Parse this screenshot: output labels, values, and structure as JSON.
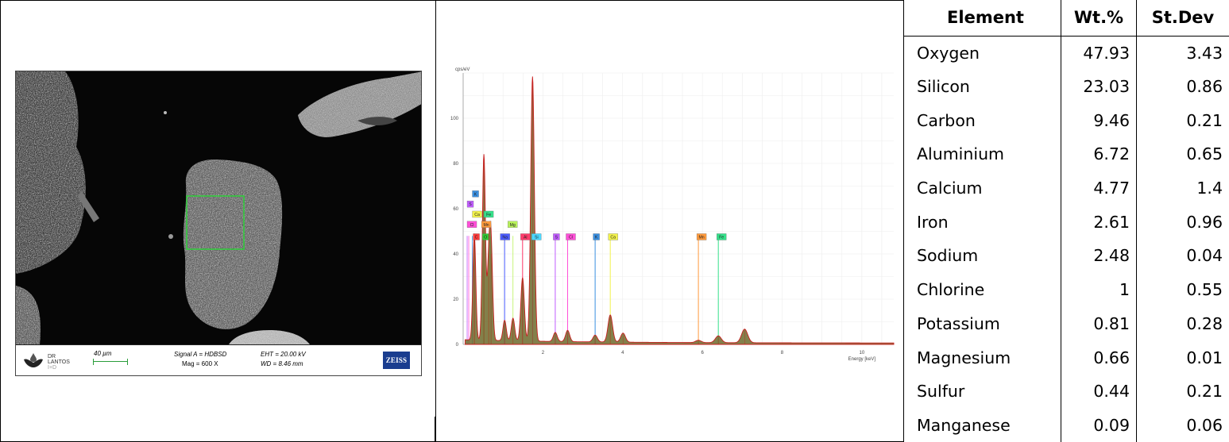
{
  "sem": {
    "logo_text": [
      "DR",
      "LANTOS",
      "I+D"
    ],
    "scale_label": "40 µm",
    "signal": "Signal A = HDBSD",
    "mag": "Mag =   600 X",
    "eht": "EHT = 20.00 kV",
    "wd": "WD = 8.46 mm",
    "brand": "ZEISS"
  },
  "chart_data": {
    "type": "line",
    "ylabel": "cps/eV",
    "xlabel": "Energy [keV]",
    "xlim": [
      0,
      10.8
    ],
    "ylim": [
      0,
      120
    ],
    "xticks": [
      2,
      4,
      6,
      8,
      10
    ],
    "yticks": [
      0,
      20,
      40,
      60,
      80,
      100
    ],
    "grid": true,
    "peaks": [
      {
        "element": "C",
        "x": 0.28,
        "y": 47
      },
      {
        "element": "O",
        "x": 0.52,
        "y": 82
      },
      {
        "element": "Fe",
        "x": 0.7,
        "y": 40
      },
      {
        "element": "Mn",
        "x": 0.64,
        "y": 30
      },
      {
        "element": "Na",
        "x": 1.04,
        "y": 9
      },
      {
        "element": "Mg",
        "x": 1.25,
        "y": 10
      },
      {
        "element": "Al",
        "x": 1.49,
        "y": 28
      },
      {
        "element": "Si",
        "x": 1.74,
        "y": 117
      },
      {
        "element": "S",
        "x": 2.31,
        "y": 4
      },
      {
        "element": "Cl",
        "x": 2.62,
        "y": 5
      },
      {
        "element": "K",
        "x": 3.31,
        "y": 3
      },
      {
        "element": "Ca",
        "x": 3.69,
        "y": 12
      },
      {
        "element": "Ca",
        "x": 4.01,
        "y": 4
      },
      {
        "element": "Mn",
        "x": 5.9,
        "y": 1
      },
      {
        "element": "Fe",
        "x": 6.4,
        "y": 3
      },
      {
        "element": "Fe",
        "x": 7.06,
        "y": 6
      }
    ],
    "element_labels": [
      {
        "element": "K",
        "x": 0.23,
        "row": 6,
        "color": "#3a8fe0"
      },
      {
        "element": "S",
        "x": 0.1,
        "row": 5,
        "color": "#c05cff"
      },
      {
        "element": "Ca",
        "x": 0.23,
        "row": 4,
        "color": "#f2f24a"
      },
      {
        "element": "Fe",
        "x": 0.52,
        "row": 4,
        "color": "#35e08a"
      },
      {
        "element": "Cl",
        "x": 0.1,
        "row": 3,
        "color": "#ff4fd8"
      },
      {
        "element": "Mn",
        "x": 0.46,
        "row": 3,
        "color": "#ff9a3c"
      },
      {
        "element": "Mg",
        "x": 1.12,
        "row": 3,
        "color": "#b8f25a"
      },
      {
        "element": "C",
        "x": 0.25,
        "row": 2,
        "color": "#ff3b3b"
      },
      {
        "element": "O",
        "x": 0.48,
        "row": 2,
        "color": "#33cc33"
      },
      {
        "element": "Na",
        "x": 0.93,
        "row": 2,
        "color": "#4a5bff"
      },
      {
        "element": "Al",
        "x": 1.44,
        "row": 2,
        "color": "#ff3b6b"
      },
      {
        "element": "Si",
        "x": 1.72,
        "row": 2,
        "color": "#4ad8ff"
      },
      {
        "element": "S",
        "x": 2.26,
        "row": 2,
        "color": "#c05cff"
      },
      {
        "element": "Cl",
        "x": 2.58,
        "row": 2,
        "color": "#ff4fd8"
      },
      {
        "element": "K",
        "x": 3.26,
        "row": 2,
        "color": "#3a8fe0"
      },
      {
        "element": "Ca",
        "x": 3.64,
        "row": 2,
        "color": "#f2f24a"
      },
      {
        "element": "Mn",
        "x": 5.86,
        "row": 2,
        "color": "#ff9a3c"
      },
      {
        "element": "Fe",
        "x": 6.36,
        "row": 2,
        "color": "#35e08a"
      }
    ]
  },
  "table": {
    "headers": [
      "Element",
      "Wt.%",
      "St.Dev"
    ],
    "rows": [
      [
        "Oxygen",
        "47.93",
        "3.43"
      ],
      [
        "Silicon",
        "23.03",
        "0.86"
      ],
      [
        "Carbon",
        "9.46",
        "0.21"
      ],
      [
        "Aluminium",
        "6.72",
        "0.65"
      ],
      [
        "Calcium",
        "4.77",
        "1.4"
      ],
      [
        "Iron",
        "2.61",
        "0.96"
      ],
      [
        "Sodium",
        "2.48",
        "0.04"
      ],
      [
        "Chlorine",
        "1",
        "0.55"
      ],
      [
        "Potassium",
        "0.81",
        "0.28"
      ],
      [
        "Magnesium",
        "0.66",
        "0.01"
      ],
      [
        "Sulfur",
        "0.44",
        "0.21"
      ],
      [
        "Manganese",
        "0.09",
        "0.06"
      ]
    ]
  }
}
